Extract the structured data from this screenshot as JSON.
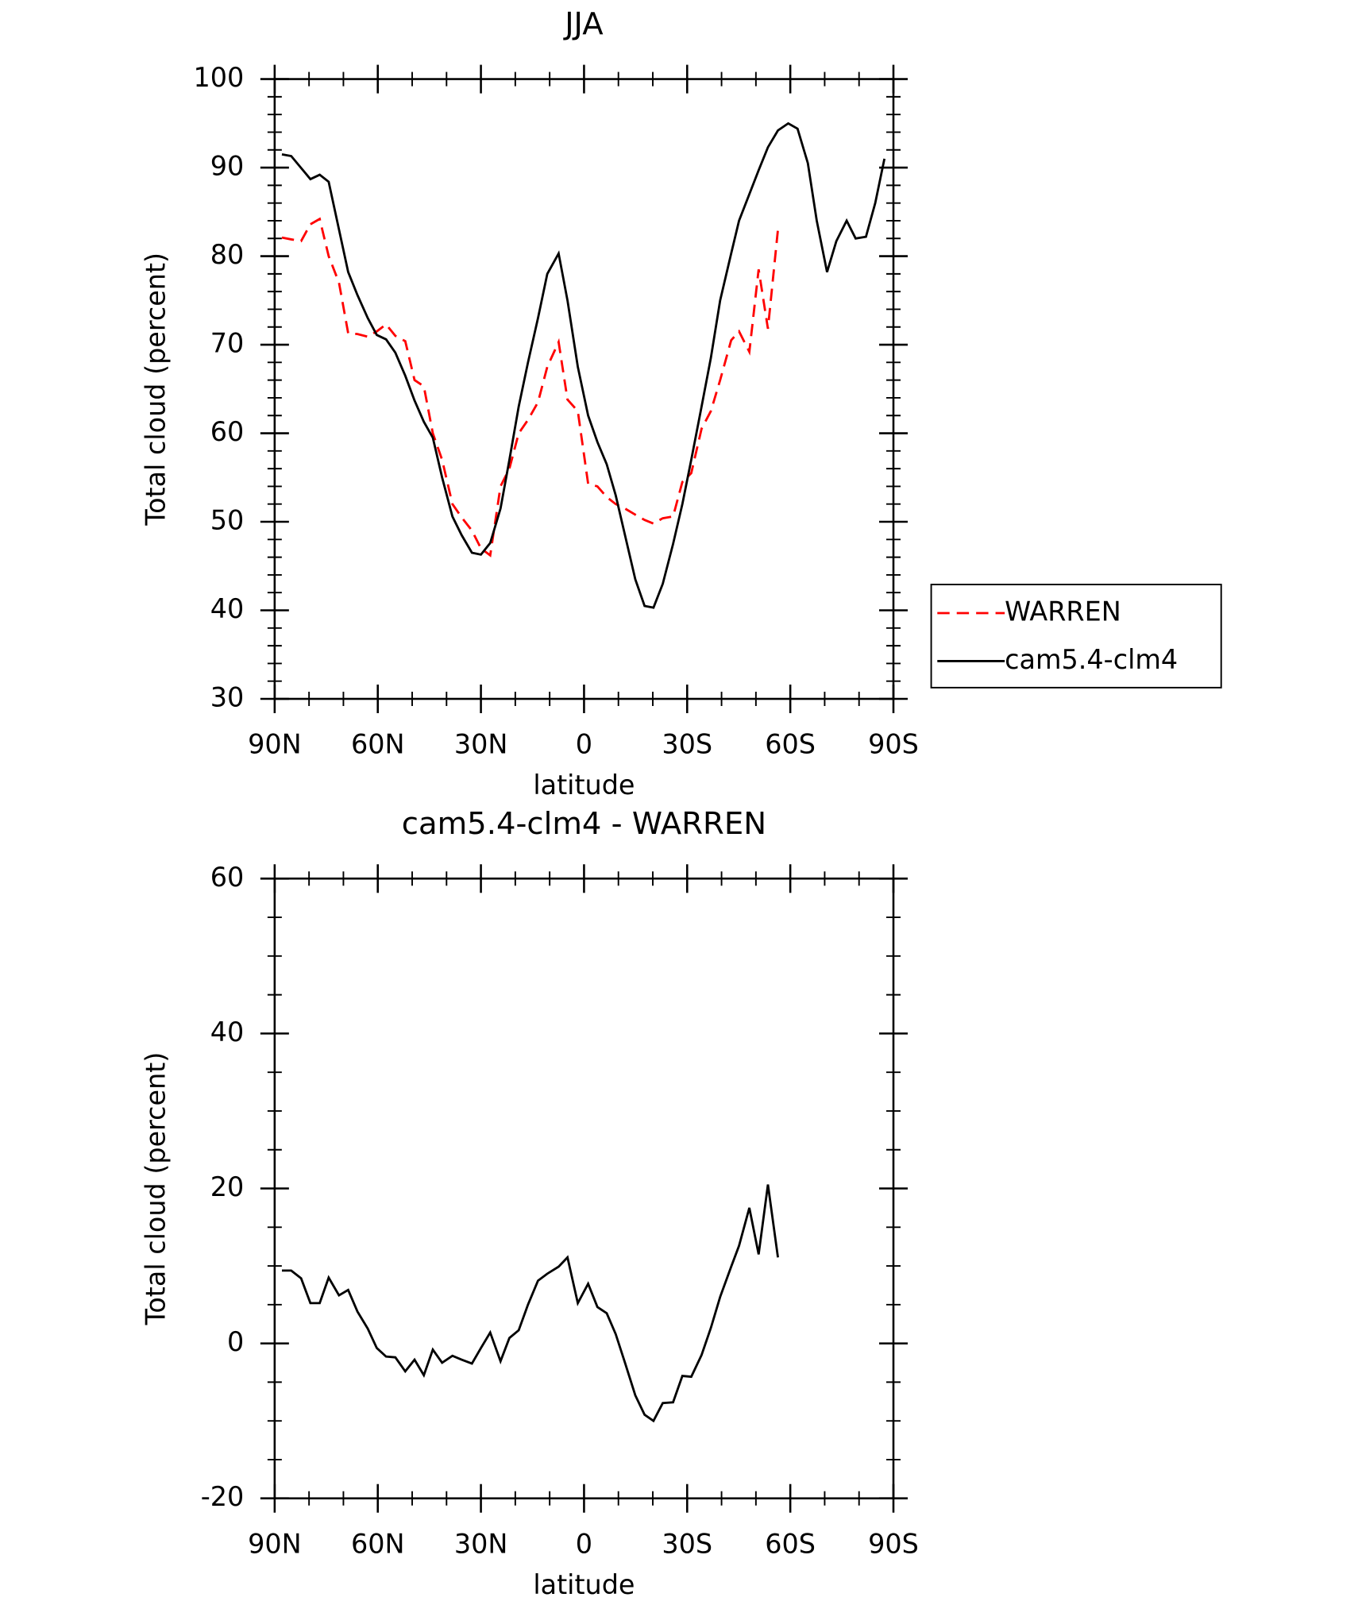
{
  "chart_data": [
    {
      "type": "line",
      "title": "JJA",
      "x_label": "latitude",
      "y_label": "Total cloud (percent)",
      "xlim": [
        90,
        -90
      ],
      "ylim": [
        30,
        100
      ],
      "xticks": [
        {
          "value": 90,
          "label": "90N"
        },
        {
          "value": 60,
          "label": "60N"
        },
        {
          "value": 30,
          "label": "30N"
        },
        0,
        {
          "value": -30,
          "label": "30S"
        },
        {
          "value": -60,
          "label": "60S"
        },
        {
          "value": -90,
          "label": "90S"
        }
      ],
      "yticks": [
        30,
        40,
        50,
        60,
        70,
        80,
        90,
        100
      ],
      "legend": "right",
      "series": [
        {
          "name": "WARREN",
          "color": "#ff0000",
          "dash": true,
          "x": [
            87.9,
            85.2,
            82.3,
            79.6,
            76.9,
            74.3,
            71.3,
            68.6,
            65.9,
            62.9,
            60.3,
            57.6,
            54.9,
            52.0,
            49.3,
            46.6,
            44.0,
            41.3,
            38.3,
            35.6,
            32.6,
            30.0,
            27.3,
            24.3,
            21.7,
            19.0,
            16.3,
            13.4,
            10.7,
            7.4,
            4.8,
            1.8,
            -1.2,
            -3.9,
            -6.6,
            -9.2,
            -11.9,
            -14.9,
            -17.6,
            -20.2,
            -22.9,
            -25.9,
            -28.6,
            -31.2,
            -34.2,
            -36.9,
            -39.6,
            -42.8,
            -45.1,
            -48.1,
            -50.8,
            -53.5,
            -56.4
          ],
          "values": [
            82.1,
            81.9,
            81.7,
            83.6,
            84.2,
            80,
            77,
            71.3,
            71.2,
            70.9,
            71.5,
            72.3,
            71,
            70.4,
            66,
            65.3,
            60,
            57,
            52,
            50.5,
            49,
            47,
            46.2,
            54,
            56,
            60,
            61.5,
            63.5,
            67.5,
            70.3,
            63.8,
            62.5,
            54.3,
            54,
            52.8,
            52,
            51.5,
            50.8,
            50.2,
            49.8,
            50.4,
            50.6,
            54.5,
            55.5,
            60.5,
            62.5,
            66,
            70.5,
            71.5,
            69.2,
            78.5,
            71.8,
            83
          ]
        },
        {
          "name": "cam5.4-clm4",
          "color": "#000000",
          "dash": false,
          "x": [
            87.9,
            85.2,
            79.6,
            76.9,
            74.3,
            68.6,
            65.9,
            62.9,
            60.3,
            57.6,
            54.9,
            52.0,
            49.3,
            46.6,
            44.0,
            41.3,
            38.3,
            35.6,
            32.6,
            30.0,
            27.3,
            24.3,
            21.7,
            19.0,
            16.3,
            13.4,
            10.7,
            7.4,
            4.8,
            1.8,
            -1.2,
            -3.9,
            -6.6,
            -9.2,
            -11.9,
            -14.9,
            -17.6,
            -20.2,
            -22.9,
            -25.9,
            -28.6,
            -31.2,
            -34.2,
            -36.9,
            -39.6,
            -42.8,
            -45.1,
            -48.1,
            -50.8,
            -53.5,
            -56.4,
            -59.4,
            -62.1,
            -65.1,
            -67.7,
            -70.7,
            -73.4,
            -76.4,
            -79.0,
            -82.0,
            -84.7,
            -87.4
          ],
          "values": [
            91.5,
            91.3,
            88.7,
            89.2,
            88.4,
            78.2,
            75.6,
            73,
            71.1,
            70.6,
            69.1,
            66.5,
            63.7,
            61.3,
            59.5,
            55,
            50.6,
            48.5,
            46.5,
            46.3,
            47.6,
            51.5,
            57,
            63,
            68,
            73,
            78,
            80.3,
            75,
            67.5,
            62,
            59,
            56.5,
            53,
            48.5,
            43.5,
            40.5,
            40.3,
            43,
            47.5,
            52,
            57,
            63,
            68.5,
            75,
            80.3,
            84,
            87,
            89.7,
            92.3,
            94.2,
            95,
            94.4,
            90.5,
            84,
            78.2,
            81.7,
            84,
            82,
            82.2,
            86,
            91
          ]
        }
      ]
    },
    {
      "type": "line",
      "title": "cam5.4-clm4 - WARREN",
      "x_label": "latitude",
      "y_label": "Total cloud (percent)",
      "xlim": [
        90,
        -90
      ],
      "ylim": [
        -20,
        60
      ],
      "xticks": [
        {
          "value": 90,
          "label": "90N"
        },
        {
          "value": 60,
          "label": "60N"
        },
        {
          "value": 30,
          "label": "30N"
        },
        0,
        {
          "value": -30,
          "label": "30S"
        },
        {
          "value": -60,
          "label": "60S"
        },
        {
          "value": -90,
          "label": "90S"
        }
      ],
      "yticks": [
        -20,
        0,
        20,
        40,
        60
      ],
      "color": "#000000",
      "x": [
        87.9,
        85.2,
        82.3,
        79.6,
        76.9,
        74.3,
        71.3,
        68.6,
        65.9,
        62.9,
        60.3,
        57.6,
        54.9,
        52.0,
        49.3,
        46.6,
        44.0,
        41.3,
        38.3,
        35.6,
        32.6,
        30.0,
        27.3,
        24.3,
        21.7,
        19.0,
        16.3,
        13.4,
        10.7,
        7.4,
        4.8,
        1.8,
        -1.2,
        -3.9,
        -6.6,
        -9.2,
        -11.9,
        -14.9,
        -17.6,
        -20.2,
        -22.9,
        -25.9,
        -28.6,
        -31.2,
        -34.2,
        -36.9,
        -39.6,
        -42.8,
        -45.1,
        -48.1,
        -50.8,
        -53.5,
        -56.4
      ],
      "values": [
        9.4,
        9.4,
        8.4,
        5.2,
        5.2,
        8.5,
        6.2,
        6.9,
        4.1,
        1.9,
        -0.6,
        -1.7,
        -1.8,
        -3.6,
        -2.1,
        -4.1,
        -0.8,
        -2.5,
        -1.6,
        -2.1,
        -2.6,
        -0.6,
        1.4,
        -2.3,
        0.7,
        1.7,
        5.0,
        8.1,
        9.0,
        9.9,
        11.1,
        5.2,
        7.7,
        4.7,
        3.9,
        1.2,
        -2.5,
        -6.7,
        -9.2,
        -10,
        -7.7,
        -7.6,
        -4.2,
        -4.3,
        -1.5,
        2.0,
        6.0,
        9.9,
        12.6,
        17.5,
        11.5,
        20.5,
        11.1
      ]
    }
  ]
}
